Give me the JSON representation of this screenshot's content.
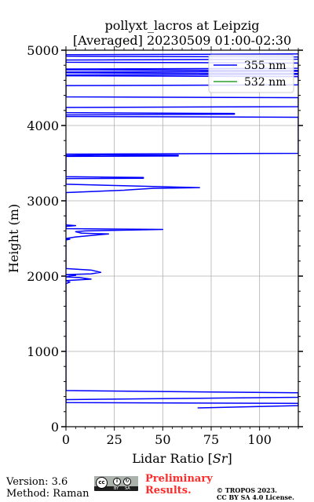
{
  "chart_data": {
    "type": "line",
    "title": "pollyxt_lacros at Leipzig",
    "subtitle": "[Averaged] 20230509 01:00-02:30",
    "xlabel": "Lidar Ratio [Sr]",
    "ylabel": "Height (m)",
    "xlim": [
      0,
      120
    ],
    "ylim": [
      0,
      5000
    ],
    "xticks": [
      "0",
      "25",
      "50",
      "75",
      "100"
    ],
    "yticks": [
      "0",
      "1000",
      "2000",
      "3000",
      "4000",
      "5000"
    ],
    "grid": true,
    "legend_position": "top-right",
    "series": [
      {
        "name": "355 nm",
        "color": "#0000ff",
        "points": [
          [
            120,
            4950
          ],
          [
            0,
            4940
          ],
          [
            0,
            4920
          ],
          [
            120,
            4910
          ],
          [
            120,
            4880
          ],
          [
            0,
            4870
          ],
          [
            0,
            4840
          ],
          [
            120,
            4830
          ],
          [
            120,
            4760
          ],
          [
            0,
            4750
          ],
          [
            0,
            4740
          ],
          [
            120,
            4730
          ],
          [
            120,
            4720
          ],
          [
            0,
            4710
          ],
          [
            0,
            4700
          ],
          [
            120,
            4690
          ],
          [
            120,
            4680
          ],
          [
            0,
            4670
          ],
          [
            0,
            4660
          ],
          [
            120,
            4650
          ],
          [
            120,
            4540
          ],
          [
            0,
            4530
          ],
          [
            0,
            4380
          ],
          [
            120,
            4370
          ],
          [
            120,
            4250
          ],
          [
            0,
            4240
          ],
          [
            0,
            4170
          ],
          [
            87,
            4160
          ],
          [
            87,
            4150
          ],
          [
            0,
            4140
          ],
          [
            0,
            4120
          ],
          [
            120,
            4110
          ],
          [
            120,
            3630
          ],
          [
            0,
            3620
          ],
          [
            0,
            3600
          ],
          [
            18,
            3610
          ],
          [
            58,
            3605
          ],
          [
            58,
            3595
          ],
          [
            0,
            3590
          ],
          [
            0,
            3320
          ],
          [
            40,
            3310
          ],
          [
            40,
            3300
          ],
          [
            0,
            3295
          ],
          [
            0,
            3220
          ],
          [
            69,
            3175
          ],
          [
            45,
            3165
          ],
          [
            35,
            3150
          ],
          [
            30,
            3140
          ],
          [
            0,
            3110
          ],
          [
            0,
            2680
          ],
          [
            5,
            2670
          ],
          [
            0,
            2660
          ],
          [
            0,
            2630
          ],
          [
            50,
            2620
          ],
          [
            10,
            2600
          ],
          [
            5,
            2590
          ],
          [
            8,
            2570
          ],
          [
            22,
            2560
          ],
          [
            5,
            2520
          ],
          [
            0,
            2500
          ],
          [
            2,
            2490
          ],
          [
            0,
            2480
          ],
          [
            0,
            2100
          ],
          [
            13,
            2080
          ],
          [
            18,
            2050
          ],
          [
            13,
            2030
          ],
          [
            0,
            2020
          ],
          [
            5,
            2010
          ],
          [
            0,
            1990
          ],
          [
            7,
            1980
          ],
          [
            10,
            1970
          ],
          [
            13,
            1960
          ],
          [
            0,
            1940
          ],
          [
            2,
            1920
          ],
          [
            0,
            1900
          ],
          [
            0,
            480
          ],
          [
            120,
            450
          ],
          [
            120,
            390
          ],
          [
            0,
            360
          ],
          [
            0,
            320
          ],
          [
            120,
            310
          ],
          [
            120,
            280
          ],
          [
            68,
            250
          ]
        ]
      },
      {
        "name": "532 nm",
        "color": "#2ca02c",
        "points": []
      }
    ]
  },
  "footer": {
    "version": "Version: 3.6",
    "method": "Method: Raman",
    "preliminary_line1": "Preliminary",
    "preliminary_line2": "Results.",
    "copyright_line1": "© TROPOS 2023.",
    "copyright_line2": "CC BY SA 4.0 License."
  },
  "license_badge": {
    "cc": "cc",
    "by": "BY",
    "sa": "SA"
  }
}
